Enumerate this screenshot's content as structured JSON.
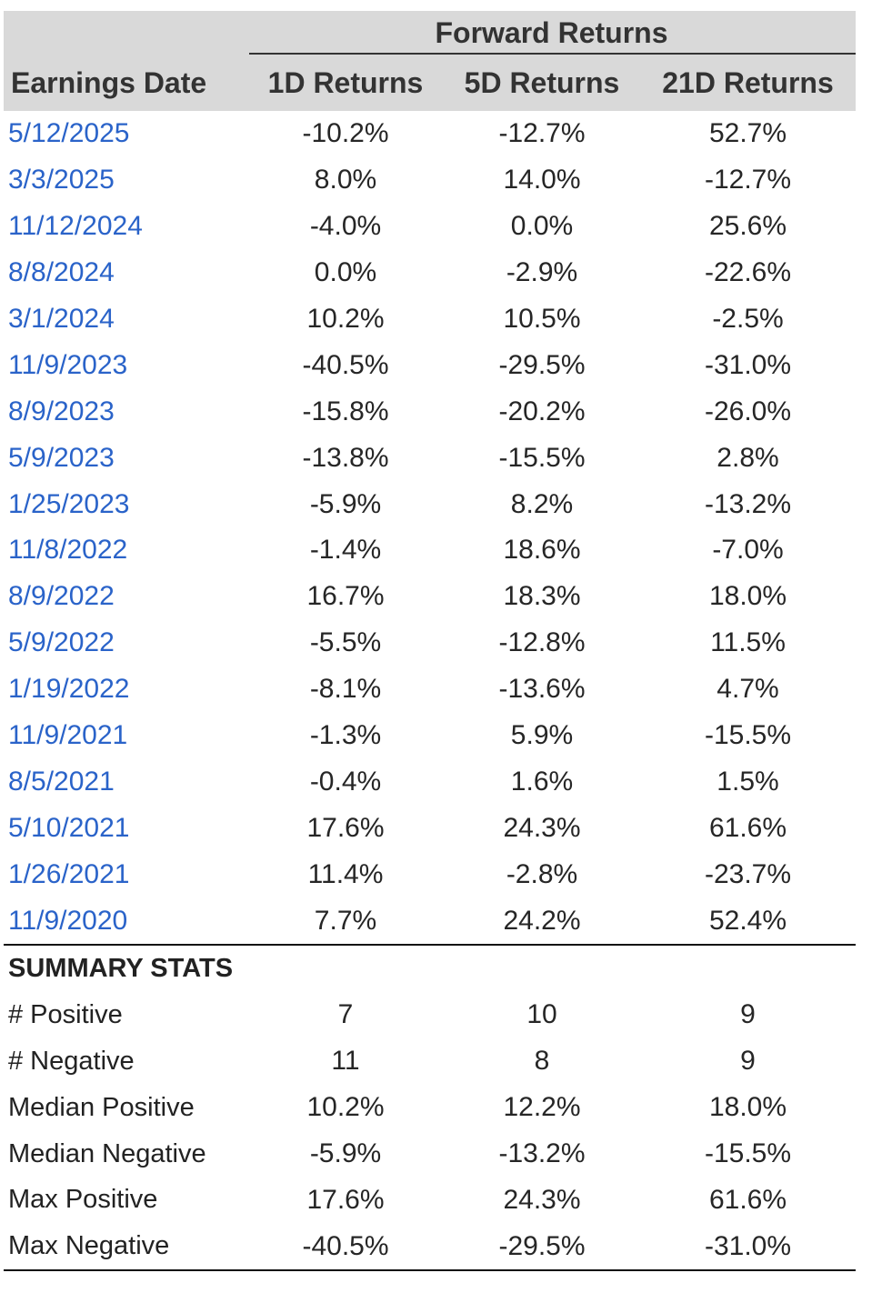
{
  "header": {
    "group_label": "Forward Returns",
    "columns": [
      "Earnings Date",
      "1D Returns",
      "5D Returns",
      "21D Returns"
    ]
  },
  "rows": [
    {
      "date": "5/12/2025",
      "d1": "-10.2%",
      "d5": "-12.7%",
      "d21": "52.7%"
    },
    {
      "date": "3/3/2025",
      "d1": "8.0%",
      "d5": "14.0%",
      "d21": "-12.7%"
    },
    {
      "date": "11/12/2024",
      "d1": "-4.0%",
      "d5": "0.0%",
      "d21": "25.6%"
    },
    {
      "date": "8/8/2024",
      "d1": "0.0%",
      "d5": "-2.9%",
      "d21": "-22.6%"
    },
    {
      "date": "3/1/2024",
      "d1": "10.2%",
      "d5": "10.5%",
      "d21": "-2.5%"
    },
    {
      "date": "11/9/2023",
      "d1": "-40.5%",
      "d5": "-29.5%",
      "d21": "-31.0%"
    },
    {
      "date": "8/9/2023",
      "d1": "-15.8%",
      "d5": "-20.2%",
      "d21": "-26.0%"
    },
    {
      "date": "5/9/2023",
      "d1": "-13.8%",
      "d5": "-15.5%",
      "d21": "2.8%"
    },
    {
      "date": "1/25/2023",
      "d1": "-5.9%",
      "d5": "8.2%",
      "d21": "-13.2%"
    },
    {
      "date": "11/8/2022",
      "d1": "-1.4%",
      "d5": "18.6%",
      "d21": "-7.0%"
    },
    {
      "date": "8/9/2022",
      "d1": "16.7%",
      "d5": "18.3%",
      "d21": "18.0%"
    },
    {
      "date": "5/9/2022",
      "d1": "-5.5%",
      "d5": "-12.8%",
      "d21": "11.5%"
    },
    {
      "date": "1/19/2022",
      "d1": "-8.1%",
      "d5": "-13.6%",
      "d21": "4.7%"
    },
    {
      "date": "11/9/2021",
      "d1": "-1.3%",
      "d5": "5.9%",
      "d21": "-15.5%"
    },
    {
      "date": "8/5/2021",
      "d1": "-0.4%",
      "d5": "1.6%",
      "d21": "1.5%"
    },
    {
      "date": "5/10/2021",
      "d1": "17.6%",
      "d5": "24.3%",
      "d21": "61.6%"
    },
    {
      "date": "1/26/2021",
      "d1": "11.4%",
      "d5": "-2.8%",
      "d21": "-23.7%"
    },
    {
      "date": "11/9/2020",
      "d1": "7.7%",
      "d5": "24.2%",
      "d21": "52.4%"
    }
  ],
  "summary": {
    "title": "SUMMARY STATS",
    "rows": [
      {
        "label": "# Positive",
        "d1": "7",
        "d5": "10",
        "d21": "9"
      },
      {
        "label": "# Negative",
        "d1": "11",
        "d5": "8",
        "d21": "9"
      },
      {
        "label": "Median Positive",
        "d1": "10.2%",
        "d5": "12.2%",
        "d21": "18.0%"
      },
      {
        "label": "Median Negative",
        "d1": "-5.9%",
        "d5": "-13.2%",
        "d21": "-15.5%"
      },
      {
        "label": "Max Positive",
        "d1": "17.6%",
        "d5": "24.3%",
        "d21": "61.6%"
      },
      {
        "label": "Max Negative",
        "d1": "-40.5%",
        "d5": "-29.5%",
        "d21": "-31.0%"
      }
    ]
  },
  "colors": {
    "header_bg": "#d9d9d9",
    "date_link": "#2a63c9",
    "text": "#262626",
    "rule": "#111111"
  }
}
